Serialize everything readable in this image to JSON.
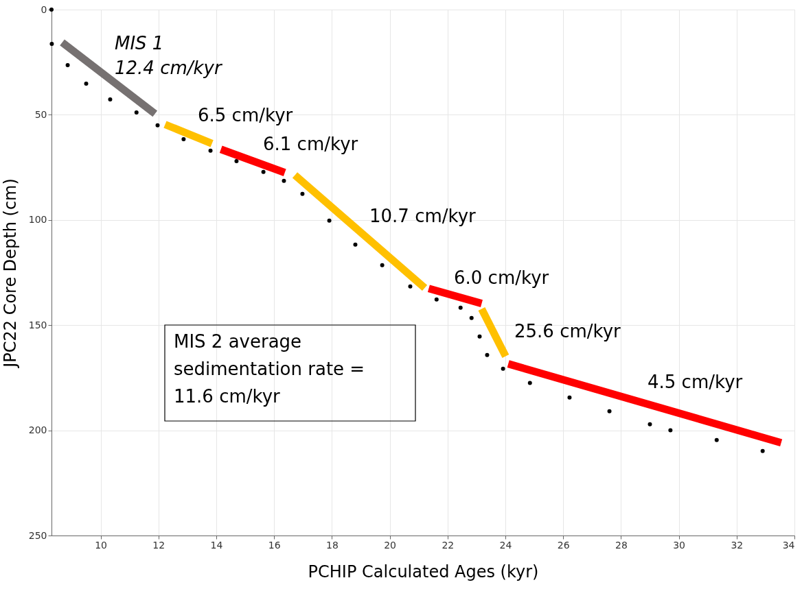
{
  "chart_data": {
    "type": "scatter",
    "xlabel": "PCHIP Calculated Ages (kyr)",
    "ylabel": "JPC22 Core Depth (cm)",
    "xlim": [
      8.3,
      34
    ],
    "ylim": [
      250,
      0
    ],
    "xticks": [
      10,
      12,
      14,
      16,
      18,
      20,
      22,
      24,
      26,
      28,
      30,
      32,
      34
    ],
    "yticks": [
      0,
      50,
      100,
      150,
      200,
      250
    ],
    "grid": true,
    "series": [
      {
        "marker": "circle",
        "color": "#000000",
        "x": [
          8.3,
          8.31,
          8.86,
          9.5,
          10.33,
          11.24,
          11.97,
          12.87,
          13.8,
          14.7,
          15.63,
          16.34,
          16.98,
          17.91,
          18.81,
          19.74,
          20.71,
          21.62,
          22.45,
          22.83,
          23.11,
          23.37,
          23.92,
          24.85,
          26.22,
          27.6,
          29.0,
          29.71,
          31.31,
          32.9
        ],
        "values": [
          0,
          16.3,
          26.4,
          35.2,
          42.7,
          48.9,
          55.0,
          61.6,
          67.1,
          72.0,
          77.2,
          81.4,
          87.6,
          100.3,
          111.7,
          121.5,
          131.6,
          137.8,
          141.7,
          146.6,
          155.4,
          164.2,
          170.7,
          177.5,
          184.4,
          190.9,
          197.1,
          200.0,
          204.6,
          209.8
        ]
      },
      {
        "type": "line",
        "color": "#767171",
        "x": [
          8.67,
          11.88
        ],
        "values": [
          15.6,
          49.5
        ]
      },
      {
        "type": "line",
        "color": "#ffc000",
        "x": [
          12.23,
          13.85
        ],
        "values": [
          54.6,
          63.7
        ]
      },
      {
        "type": "line",
        "color": "#ff0000",
        "x": [
          14.16,
          16.37
        ],
        "values": [
          66.4,
          77.5
        ]
      },
      {
        "type": "line",
        "color": "#ffc000",
        "x": [
          16.72,
          21.21
        ],
        "values": [
          78.7,
          132.3
        ]
      },
      {
        "type": "line",
        "color": "#ff0000",
        "x": [
          21.35,
          23.18
        ],
        "values": [
          132.6,
          139.7
        ]
      },
      {
        "type": "line",
        "color": "#ffc000",
        "x": [
          23.18,
          24.01
        ],
        "values": [
          142.3,
          164.8
        ]
      },
      {
        "type": "line",
        "color": "#ff0000",
        "x": [
          24.1,
          33.54
        ],
        "values": [
          168.4,
          205.9
        ]
      }
    ],
    "annotations": [
      "MIS 1",
      "12.4 cm/kyr",
      "6.5 cm/kyr",
      "6.1 cm/kyr",
      "10.7 cm/kyr",
      "6.0 cm/kyr",
      "25.6 cm/kyr",
      "4.5 cm/kyr",
      "MIS 2 average\nsedimentation rate =\n11.6 cm/kyr"
    ]
  }
}
